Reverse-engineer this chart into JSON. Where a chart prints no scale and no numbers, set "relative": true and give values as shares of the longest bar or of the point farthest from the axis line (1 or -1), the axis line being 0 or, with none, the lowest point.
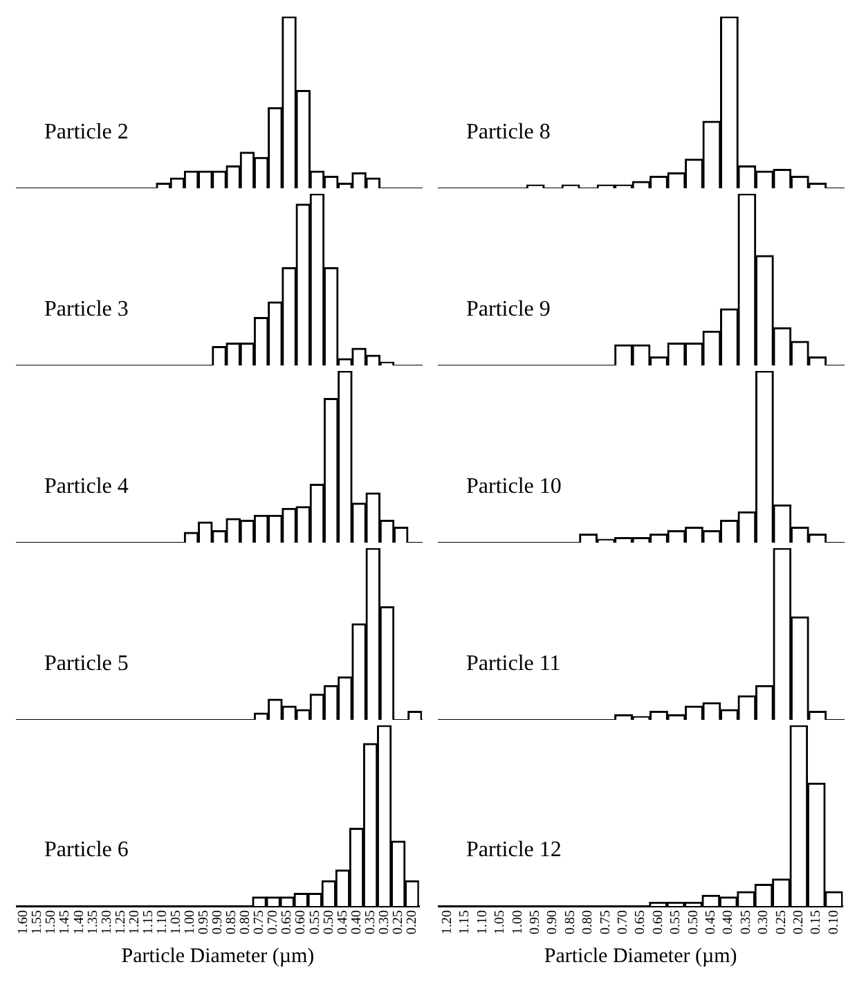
{
  "chart_data": [
    {
      "type": "bar",
      "title": "Particle 2",
      "relative": true,
      "tick_labels": false,
      "color": "#ffffff",
      "categories": [
        "1.60",
        "1.55",
        "1.50",
        "1.45",
        "1.40",
        "1.35",
        "1.30",
        "1.25",
        "1.20",
        "1.15",
        "1.10",
        "1.05",
        "1.00",
        "0.95",
        "0.90",
        "0.85",
        "0.80",
        "0.75",
        "0.70",
        "0.65",
        "0.60",
        "0.55",
        "0.50",
        "0.45",
        "0.40",
        "0.35",
        "0.30",
        "0.25",
        "0.20"
      ],
      "values": [
        null,
        null,
        null,
        null,
        null,
        null,
        null,
        null,
        null,
        null,
        0.03,
        0.06,
        0.1,
        0.1,
        0.1,
        0.13,
        0.21,
        0.18,
        0.47,
        1,
        0.57,
        0.1,
        0.07,
        0.03,
        0.09,
        0.06,
        null,
        null,
        null
      ]
    },
    {
      "type": "bar",
      "title": "Particle 3",
      "relative": true,
      "tick_labels": false,
      "color": "#ffffff",
      "categories": [
        "1.60",
        "1.55",
        "1.50",
        "1.45",
        "1.40",
        "1.35",
        "1.30",
        "1.25",
        "1.20",
        "1.15",
        "1.10",
        "1.05",
        "1.00",
        "0.95",
        "0.90",
        "0.85",
        "0.80",
        "0.75",
        "0.70",
        "0.65",
        "0.60",
        "0.55",
        "0.50",
        "0.45",
        "0.40",
        "0.35",
        "0.30",
        "0.25",
        "0.20"
      ],
      "values": [
        null,
        null,
        null,
        null,
        null,
        null,
        null,
        null,
        null,
        null,
        null,
        null,
        null,
        null,
        0.11,
        0.13,
        0.13,
        0.28,
        0.37,
        0.57,
        0.94,
        1,
        0.57,
        0.04,
        0.1,
        0.06,
        0.02,
        null,
        null
      ]
    },
    {
      "type": "bar",
      "title": "Particle 4",
      "relative": true,
      "tick_labels": false,
      "color": "#ffffff",
      "categories": [
        "1.60",
        "1.55",
        "1.50",
        "1.45",
        "1.40",
        "1.35",
        "1.30",
        "1.25",
        "1.20",
        "1.15",
        "1.10",
        "1.05",
        "1.00",
        "0.95",
        "0.90",
        "0.85",
        "0.80",
        "0.75",
        "0.70",
        "0.65",
        "0.60",
        "0.55",
        "0.50",
        "0.45",
        "0.40",
        "0.35",
        "0.30",
        "0.25",
        "0.20"
      ],
      "values": [
        null,
        null,
        null,
        null,
        null,
        null,
        null,
        null,
        null,
        null,
        null,
        null,
        0.06,
        0.12,
        0.07,
        0.14,
        0.13,
        0.16,
        0.16,
        0.2,
        0.21,
        0.34,
        0.84,
        1,
        0.23,
        0.29,
        0.13,
        0.09,
        null
      ]
    },
    {
      "type": "bar",
      "title": "Particle 5",
      "relative": true,
      "tick_labels": false,
      "color": "#ffffff",
      "categories": [
        "1.60",
        "1.55",
        "1.50",
        "1.45",
        "1.40",
        "1.35",
        "1.30",
        "1.25",
        "1.20",
        "1.15",
        "1.10",
        "1.05",
        "1.00",
        "0.95",
        "0.90",
        "0.85",
        "0.80",
        "0.75",
        "0.70",
        "0.65",
        "0.60",
        "0.55",
        "0.50",
        "0.45",
        "0.40",
        "0.35",
        "0.30",
        "0.25",
        "0.20"
      ],
      "values": [
        null,
        null,
        null,
        null,
        null,
        null,
        null,
        null,
        null,
        null,
        null,
        null,
        null,
        null,
        null,
        null,
        null,
        0.04,
        0.12,
        0.08,
        0.06,
        0.15,
        0.2,
        0.25,
        0.56,
        1,
        0.66,
        0,
        0.05
      ]
    },
    {
      "type": "bar",
      "title": "Particle 6",
      "relative": true,
      "tick_labels": "x",
      "xlabel": "Particle Diameter (µm)",
      "color": "#ffffff",
      "categories": [
        "1.60",
        "1.55",
        "1.50",
        "1.45",
        "1.40",
        "1.35",
        "1.30",
        "1.25",
        "1.20",
        "1.15",
        "1.10",
        "1.05",
        "1.00",
        "0.95",
        "0.90",
        "0.85",
        "0.80",
        "0.75",
        "0.70",
        "0.65",
        "0.60",
        "0.55",
        "0.50",
        "0.45",
        "0.40",
        "0.35",
        "0.30",
        "0.25",
        "0.20"
      ],
      "values": [
        null,
        null,
        null,
        null,
        null,
        null,
        null,
        null,
        null,
        null,
        null,
        null,
        null,
        null,
        null,
        null,
        null,
        0.05,
        0.05,
        0.05,
        0.07,
        0.07,
        0.14,
        0.2,
        0.43,
        0.9,
        1,
        0.36,
        0.14
      ]
    },
    {
      "type": "bar",
      "title": "Particle 8",
      "relative": true,
      "tick_labels": false,
      "color": "#ffffff",
      "categories": [
        "1.20",
        "1.15",
        "1.10",
        "1.05",
        "1.00",
        "0.95",
        "0.90",
        "0.85",
        "0.80",
        "0.75",
        "0.70",
        "0.65",
        "0.60",
        "0.55",
        "0.50",
        "0.45",
        "0.40",
        "0.35",
        "0.30",
        "0.25",
        "0.20",
        "0.15",
        "0.10"
      ],
      "values": [
        null,
        null,
        null,
        null,
        null,
        0.02,
        0,
        0.02,
        0,
        0.02,
        0.02,
        0.04,
        0.07,
        0.09,
        0.17,
        0.39,
        1,
        0.13,
        0.1,
        0.11,
        0.07,
        0.03,
        null
      ]
    },
    {
      "type": "bar",
      "title": "Particle 9",
      "relative": true,
      "tick_labels": false,
      "color": "#ffffff",
      "categories": [
        "1.20",
        "1.15",
        "1.10",
        "1.05",
        "1.00",
        "0.95",
        "0.90",
        "0.85",
        "0.80",
        "0.75",
        "0.70",
        "0.65",
        "0.60",
        "0.55",
        "0.50",
        "0.45",
        "0.40",
        "0.35",
        "0.30",
        "0.25",
        "0.20",
        "0.15",
        "0.10"
      ],
      "values": [
        null,
        null,
        null,
        null,
        null,
        null,
        null,
        null,
        null,
        null,
        0.12,
        0.12,
        0.05,
        0.13,
        0.13,
        0.2,
        0.33,
        1,
        0.64,
        0.22,
        0.14,
        0.05,
        null
      ]
    },
    {
      "type": "bar",
      "title": "Particle 10",
      "relative": true,
      "tick_labels": false,
      "color": "#ffffff",
      "categories": [
        "1.20",
        "1.15",
        "1.10",
        "1.05",
        "1.00",
        "0.95",
        "0.90",
        "0.85",
        "0.80",
        "0.75",
        "0.70",
        "0.65",
        "0.60",
        "0.55",
        "0.50",
        "0.45",
        "0.40",
        "0.35",
        "0.30",
        "0.25",
        "0.20",
        "0.15",
        "0.10"
      ],
      "values": [
        null,
        null,
        null,
        null,
        null,
        null,
        null,
        null,
        0.05,
        0.02,
        0.03,
        0.03,
        0.05,
        0.07,
        0.09,
        0.07,
        0.13,
        0.18,
        1,
        0.22,
        0.09,
        0.05,
        null
      ]
    },
    {
      "type": "bar",
      "title": "Particle 11",
      "relative": true,
      "tick_labels": false,
      "color": "#ffffff",
      "categories": [
        "1.20",
        "1.15",
        "1.10",
        "1.05",
        "1.00",
        "0.95",
        "0.90",
        "0.85",
        "0.80",
        "0.75",
        "0.70",
        "0.65",
        "0.60",
        "0.55",
        "0.50",
        "0.45",
        "0.40",
        "0.35",
        "0.30",
        "0.25",
        "0.20",
        "0.15",
        "0.10"
      ],
      "values": [
        null,
        null,
        null,
        null,
        null,
        null,
        null,
        null,
        null,
        null,
        0.03,
        0.02,
        0.05,
        0.03,
        0.08,
        0.1,
        0.06,
        0.14,
        0.2,
        1,
        0.6,
        0.05,
        null
      ]
    },
    {
      "type": "bar",
      "title": "Particle 12",
      "relative": true,
      "tick_labels": "x",
      "xlabel": "Particle Diameter (µm)",
      "color": "#ffffff",
      "categories": [
        "1.20",
        "1.15",
        "1.10",
        "1.05",
        "1.00",
        "0.95",
        "0.90",
        "0.85",
        "0.80",
        "0.75",
        "0.70",
        "0.65",
        "0.60",
        "0.55",
        "0.50",
        "0.45",
        "0.40",
        "0.35",
        "0.30",
        "0.25",
        "0.20",
        "0.15",
        "0.10"
      ],
      "values": [
        null,
        null,
        null,
        null,
        null,
        null,
        null,
        null,
        null,
        null,
        null,
        null,
        0.02,
        0.02,
        0.02,
        0.06,
        0.05,
        0.08,
        0.12,
        0.15,
        1,
        0.68,
        0.08
      ]
    }
  ]
}
